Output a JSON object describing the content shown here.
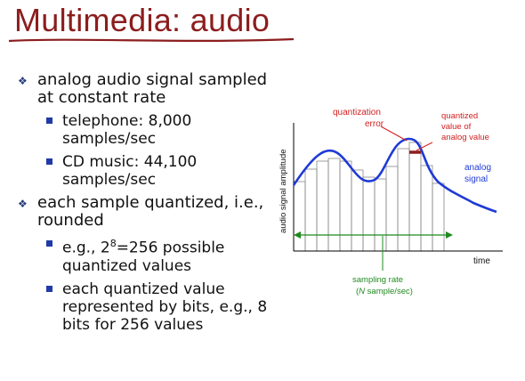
{
  "slide": {
    "title": "Multimedia: audio",
    "bullets": [
      {
        "text": "analog audio signal sampled at constant rate",
        "sub": [
          {
            "text": "telephone: 8,000 samples/sec"
          },
          {
            "text": "CD music: 44,100 samples/sec"
          }
        ]
      },
      {
        "text": "each sample quantized, i.e., rounded",
        "sub": [
          {
            "pre": "e.g., 2",
            "sup": "8",
            "post": "=256 possible quantized values"
          },
          {
            "text": "each quantized value represented by bits, e.g., 8 bits for 256 values"
          }
        ]
      }
    ]
  },
  "diagram": {
    "y_axis_label": "audio signal amplitude",
    "x_axis_label": "time",
    "quantization_error_label": [
      "quantization",
      "error"
    ],
    "quantized_value_label": [
      "quantized",
      "value of",
      "analog value"
    ],
    "analog_signal_label": [
      "analog",
      "signal"
    ],
    "sampling_rate_label": "sampling rate",
    "sampling_rate_units": [
      "(",
      "N",
      " sample/sec)"
    ],
    "colors": {
      "title": "#8c1d1d",
      "signal": "#1f3ad6",
      "annotation_red": "#d22020",
      "sampling_green": "#1f8a1f",
      "bars": "#888888"
    }
  }
}
